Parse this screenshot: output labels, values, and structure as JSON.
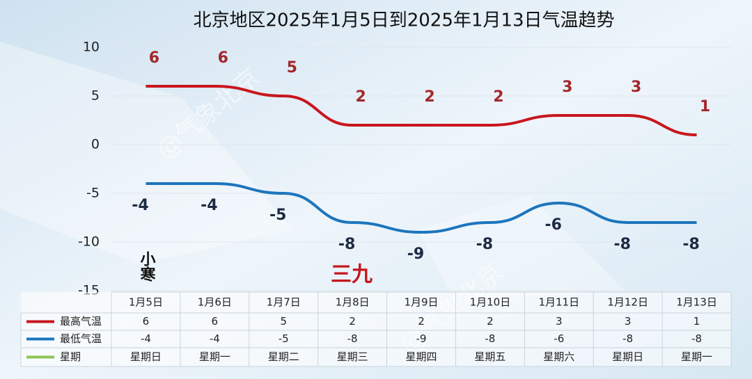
{
  "chart_data": {
    "type": "line",
    "title": "北京地区2025年1月5日到2025年1月13日气温趋势",
    "categories": [
      "1月5日",
      "1月6日",
      "1月7日",
      "1月8日",
      "1月9日",
      "1月10日",
      "1月11日",
      "1月12日",
      "1月13日"
    ],
    "series": [
      {
        "name": "最高气温",
        "color": "#c8161d",
        "values": [
          6,
          6,
          5,
          2,
          2,
          2,
          3,
          3,
          1
        ]
      },
      {
        "name": "最低气温",
        "color": "#1c75bc",
        "values": [
          -4,
          -4,
          -5,
          -8,
          -9,
          -8,
          -6,
          -8,
          -8
        ]
      }
    ],
    "table_row": {
      "name": "星期",
      "color": "#92c353",
      "values": [
        "星期日",
        "星期一",
        "星期二",
        "星期三",
        "星期四",
        "星期五",
        "星期六",
        "星期日",
        "星期一"
      ]
    },
    "ylim": [
      -15,
      10
    ],
    "yticks": [
      -15,
      -10,
      -5,
      0,
      5,
      10
    ],
    "grid": true,
    "annotations": [
      "小寒",
      "三九"
    ],
    "watermark": "@气象北京"
  }
}
